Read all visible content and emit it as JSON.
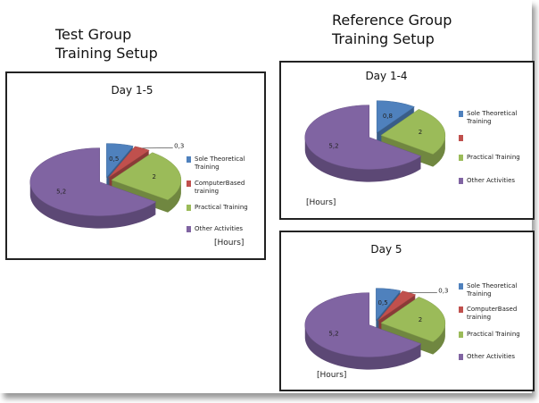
{
  "headings": [
    {
      "lines": [
        "Test Group",
        "Training Setup"
      ]
    },
    {
      "lines": [
        "Reference Group",
        "Training Setup"
      ]
    }
  ],
  "chart_data": [
    {
      "type": "pie",
      "title": "Day 1-5",
      "categories": [
        "Sole Theoretical Training",
        "ComputerBased training",
        "Practical Training",
        "Other Activities"
      ],
      "values": [
        0.5,
        0.3,
        2,
        5.2
      ],
      "value_labels": [
        "0,5",
        "0,3",
        "2",
        "5,2"
      ],
      "colors": [
        "#4f81bd",
        "#c0504d",
        "#9bbb59",
        "#8064a2"
      ],
      "annotation": "[Hours]"
    },
    {
      "type": "pie",
      "title": "Day 1-4",
      "categories": [
        "Sole Theoretical Training",
        null,
        "Practical Training",
        "Other Activities"
      ],
      "values": [
        0.8,
        null,
        2,
        5.2
      ],
      "value_labels": [
        "0,8",
        null,
        "2",
        "5,2"
      ],
      "colors": [
        "#4f81bd",
        "#c0504d",
        "#9bbb59",
        "#8064a2"
      ],
      "annotation": "[Hours]"
    },
    {
      "type": "pie",
      "title": "Day 5",
      "categories": [
        "Sole Theoretical Training",
        "ComputerBased training",
        "Practical Training",
        "Other Activities"
      ],
      "values": [
        0.5,
        0.3,
        2,
        5.2
      ],
      "value_labels": [
        "0,5",
        "0,3",
        "2",
        "5,2"
      ],
      "colors": [
        "#4f81bd",
        "#c0504d",
        "#9bbb59",
        "#8064a2"
      ],
      "annotation": "[Hours]"
    }
  ]
}
